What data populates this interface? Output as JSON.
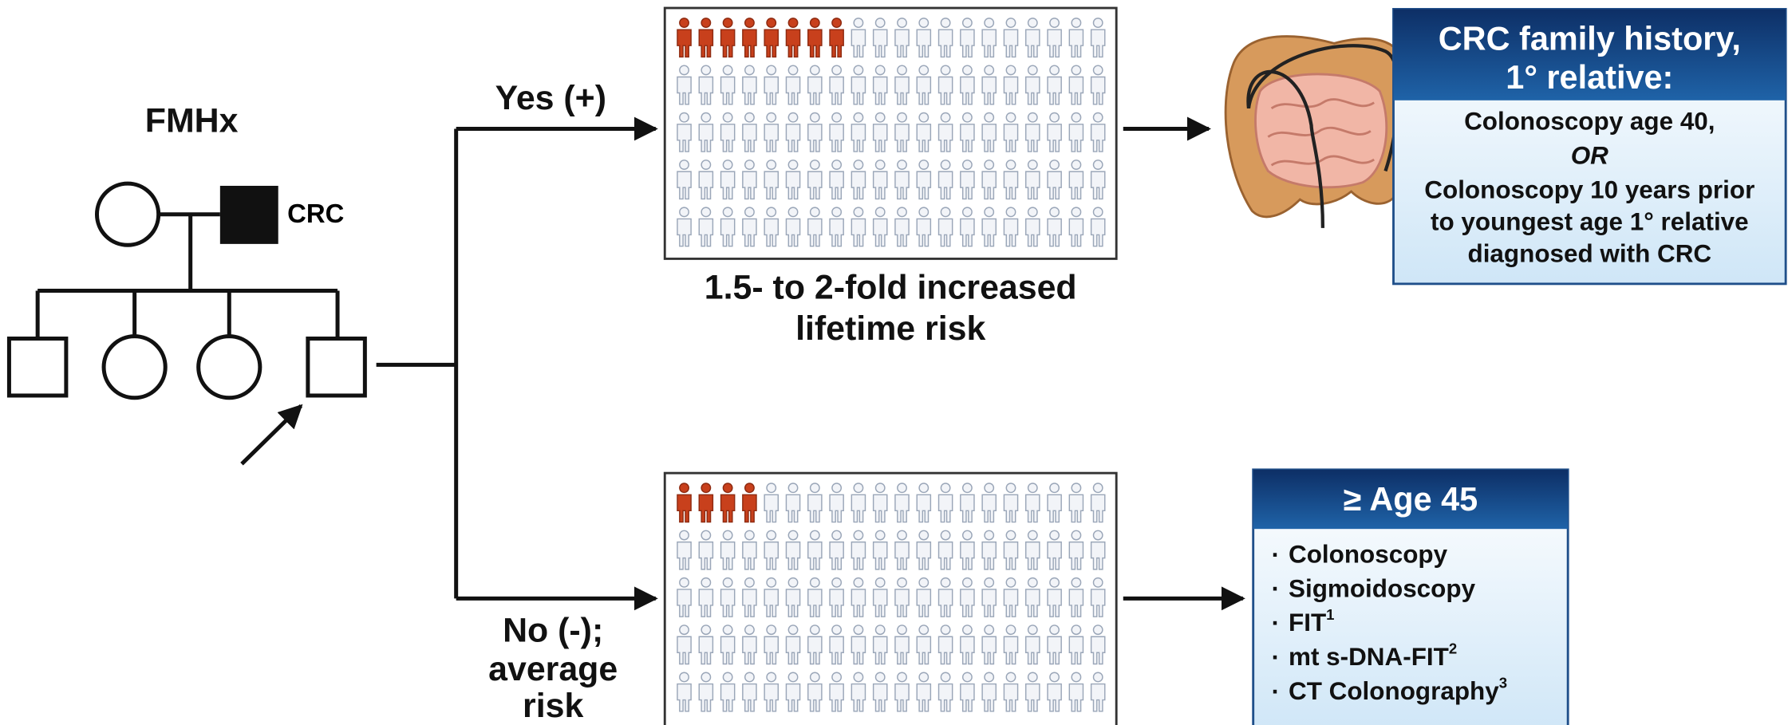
{
  "pedigree": {
    "title": "FMHx",
    "affected_label": "CRC"
  },
  "branches": {
    "yes": {
      "label": "Yes (+)"
    },
    "no": {
      "label_lines": [
        "No (-);",
        "average",
        "risk"
      ]
    }
  },
  "risk_grids": [
    {
      "affected": 8,
      "total": 100,
      "caption_lines": [
        "1.5- to 2-fold increased",
        "lifetime risk"
      ]
    },
    {
      "affected": 4,
      "total": 100
    }
  ],
  "family_history_box": {
    "title_lines": [
      "CRC family history,",
      "1° relative:"
    ],
    "body_lines": [
      "Colonoscopy age 40,",
      "OR",
      "Colonoscopy 10 years prior",
      "to youngest age 1° relative",
      "diagnosed with CRC"
    ]
  },
  "average_risk_box": {
    "title": "≥ Age 45",
    "items": [
      {
        "text": "Colonoscopy"
      },
      {
        "text": "Sigmoidoscopy"
      },
      {
        "text": "FIT",
        "note": "1"
      },
      {
        "text": "mt s-DNA-FIT",
        "note": "2"
      },
      {
        "text": "CT Colonography",
        "note": "3"
      }
    ]
  }
}
